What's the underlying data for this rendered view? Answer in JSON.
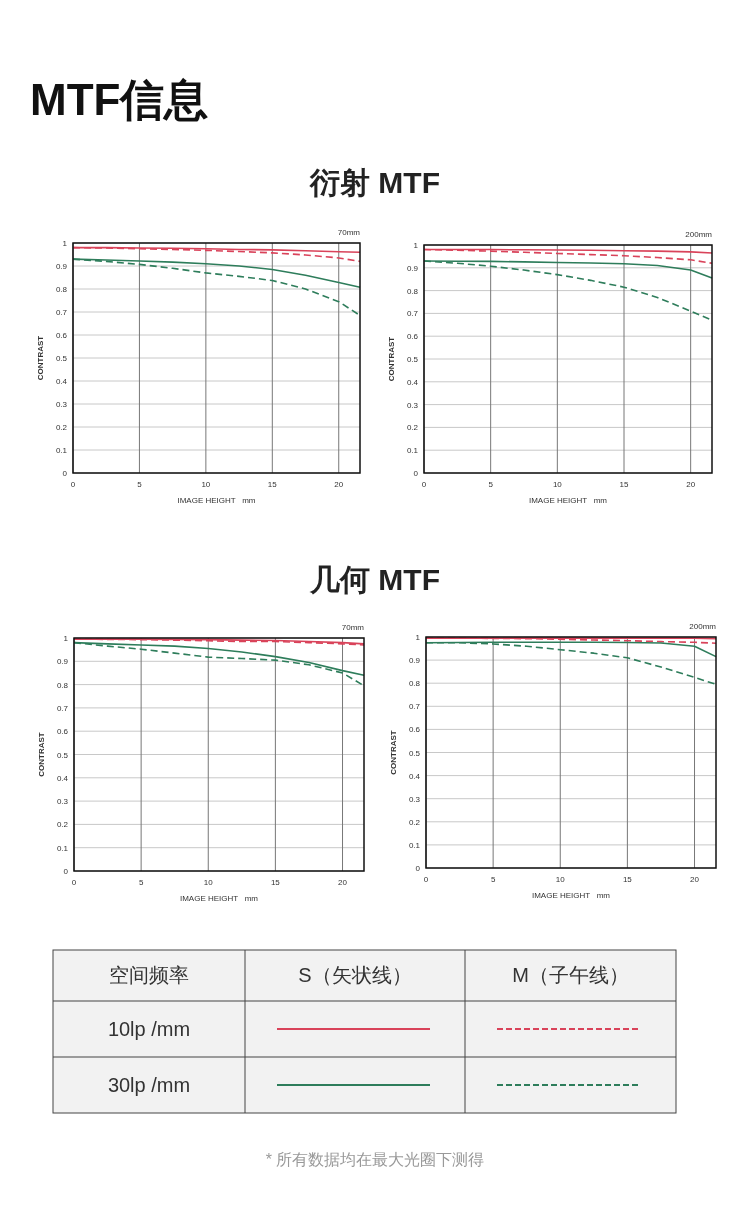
{
  "chart_data": [
    {
      "type": "other",
      "title": "MTF信息"
    },
    {
      "type": "line",
      "title": "衍射 MTF",
      "annotations": [
        "70mm"
      ],
      "xlabel": "IMAGE HEIGHT   mm",
      "ylabel": "CONTRAST",
      "x": [
        0,
        2.5,
        5,
        7.5,
        10,
        12.5,
        15,
        17.5,
        20,
        21.6
      ],
      "xlim": [
        0,
        21.6
      ],
      "xticks": [
        0,
        5,
        10,
        15,
        20
      ],
      "ylim": [
        0,
        1
      ],
      "yticks": [
        0,
        0.1,
        0.2,
        0.3,
        0.4,
        0.5,
        0.6,
        0.7,
        0.8,
        0.9,
        1
      ],
      "grid": true,
      "series": [
        {
          "color": "#d9435a",
          "line_style": "solid",
          "values": [
            0.98,
            0.98,
            0.978,
            0.977,
            0.975,
            0.972,
            0.97,
            0.966,
            0.962,
            0.96
          ]
        },
        {
          "color": "#d9435a",
          "line_style": "dashed",
          "values": [
            0.98,
            0.978,
            0.975,
            0.972,
            0.968,
            0.963,
            0.957,
            0.948,
            0.935,
            0.92
          ]
        },
        {
          "color": "#2e7d5b",
          "line_style": "solid",
          "values": [
            0.93,
            0.926,
            0.922,
            0.917,
            0.91,
            0.9,
            0.885,
            0.86,
            0.828,
            0.808
          ]
        },
        {
          "color": "#2e7d5b",
          "line_style": "dashed",
          "values": [
            0.93,
            0.92,
            0.907,
            0.89,
            0.87,
            0.855,
            0.837,
            0.8,
            0.745,
            0.685
          ]
        }
      ]
    },
    {
      "type": "line",
      "annotations": [
        "200mm"
      ],
      "xlabel": "IMAGE HEIGHT   mm",
      "ylabel": "CONTRAST",
      "x": [
        0,
        2.5,
        5,
        7.5,
        10,
        12.5,
        15,
        17.5,
        20,
        21.6
      ],
      "xlim": [
        0,
        21.6
      ],
      "xticks": [
        0,
        5,
        10,
        15,
        20
      ],
      "ylim": [
        0,
        1
      ],
      "yticks": [
        0,
        0.1,
        0.2,
        0.3,
        0.4,
        0.5,
        0.6,
        0.7,
        0.8,
        0.9,
        1
      ],
      "grid": true,
      "series": [
        {
          "color": "#d9435a",
          "line_style": "solid",
          "values": [
            0.98,
            0.98,
            0.98,
            0.979,
            0.978,
            0.977,
            0.975,
            0.973,
            0.97,
            0.965
          ]
        },
        {
          "color": "#d9435a",
          "line_style": "dashed",
          "values": [
            0.98,
            0.977,
            0.973,
            0.968,
            0.963,
            0.958,
            0.953,
            0.945,
            0.935,
            0.92
          ]
        },
        {
          "color": "#2e7d5b",
          "line_style": "solid",
          "values": [
            0.93,
            0.929,
            0.928,
            0.926,
            0.923,
            0.921,
            0.918,
            0.91,
            0.89,
            0.855
          ]
        },
        {
          "color": "#2e7d5b",
          "line_style": "dashed",
          "values": [
            0.93,
            0.92,
            0.907,
            0.89,
            0.87,
            0.845,
            0.815,
            0.77,
            0.71,
            0.67
          ]
        }
      ]
    },
    {
      "type": "line",
      "title": "几何 MTF",
      "annotations": [
        "70mm"
      ],
      "xlabel": "IMAGE HEIGHT   mm",
      "ylabel": "CONTRAST",
      "x": [
        0,
        2.5,
        5,
        7.5,
        10,
        12.5,
        15,
        17.5,
        20,
        21.6
      ],
      "xlim": [
        0,
        21.6
      ],
      "xticks": [
        0,
        5,
        10,
        15,
        20
      ],
      "ylim": [
        0,
        1
      ],
      "yticks": [
        0,
        0.1,
        0.2,
        0.3,
        0.4,
        0.5,
        0.6,
        0.7,
        0.8,
        0.9,
        1
      ],
      "grid": true,
      "series": [
        {
          "color": "#d9435a",
          "line_style": "solid",
          "values": [
            0.995,
            0.995,
            0.995,
            0.994,
            0.993,
            0.991,
            0.989,
            0.985,
            0.98,
            0.975
          ]
        },
        {
          "color": "#d9435a",
          "line_style": "dashed",
          "values": [
            0.995,
            0.994,
            0.993,
            0.991,
            0.988,
            0.985,
            0.985,
            0.98,
            0.975,
            0.97
          ]
        },
        {
          "color": "#2e7d5b",
          "line_style": "solid",
          "values": [
            0.98,
            0.975,
            0.97,
            0.965,
            0.955,
            0.94,
            0.92,
            0.895,
            0.86,
            0.84
          ]
        },
        {
          "color": "#2e7d5b",
          "line_style": "dashed",
          "values": [
            0.98,
            0.965,
            0.952,
            0.935,
            0.918,
            0.912,
            0.905,
            0.885,
            0.85,
            0.795
          ]
        }
      ]
    },
    {
      "type": "line",
      "annotations": [
        "200mm"
      ],
      "xlabel": "IMAGE HEIGHT   mm",
      "ylabel": "CONTRAST",
      "x": [
        0,
        2.5,
        5,
        7.5,
        10,
        12.5,
        15,
        17.5,
        20,
        21.6
      ],
      "xlim": [
        0,
        21.6
      ],
      "xticks": [
        0,
        5,
        10,
        15,
        20
      ],
      "ylim": [
        0,
        1
      ],
      "yticks": [
        0,
        0.1,
        0.2,
        0.3,
        0.4,
        0.5,
        0.6,
        0.7,
        0.8,
        0.9,
        1
      ],
      "grid": true,
      "series": [
        {
          "color": "#d9435a",
          "line_style": "solid",
          "values": [
            0.995,
            0.995,
            0.995,
            0.995,
            0.995,
            0.995,
            0.995,
            0.995,
            0.995,
            0.993
          ]
        },
        {
          "color": "#d9435a",
          "line_style": "dashed",
          "values": [
            0.995,
            0.995,
            0.994,
            0.993,
            0.99,
            0.987,
            0.984,
            0.98,
            0.977,
            0.973
          ]
        },
        {
          "color": "#2e7d5b",
          "line_style": "solid",
          "values": [
            0.975,
            0.976,
            0.977,
            0.977,
            0.977,
            0.977,
            0.976,
            0.974,
            0.96,
            0.915
          ]
        },
        {
          "color": "#2e7d5b",
          "line_style": "dashed",
          "values": [
            0.975,
            0.975,
            0.97,
            0.96,
            0.945,
            0.93,
            0.91,
            0.87,
            0.825,
            0.795
          ]
        }
      ]
    },
    {
      "type": "other",
      "annotations": [
        "空间频率",
        "S（矢状线）",
        "M（子午线）",
        "10lp /mm",
        "30lp /mm",
        "* 所有数据均在最大光圈下测得"
      ]
    }
  ]
}
